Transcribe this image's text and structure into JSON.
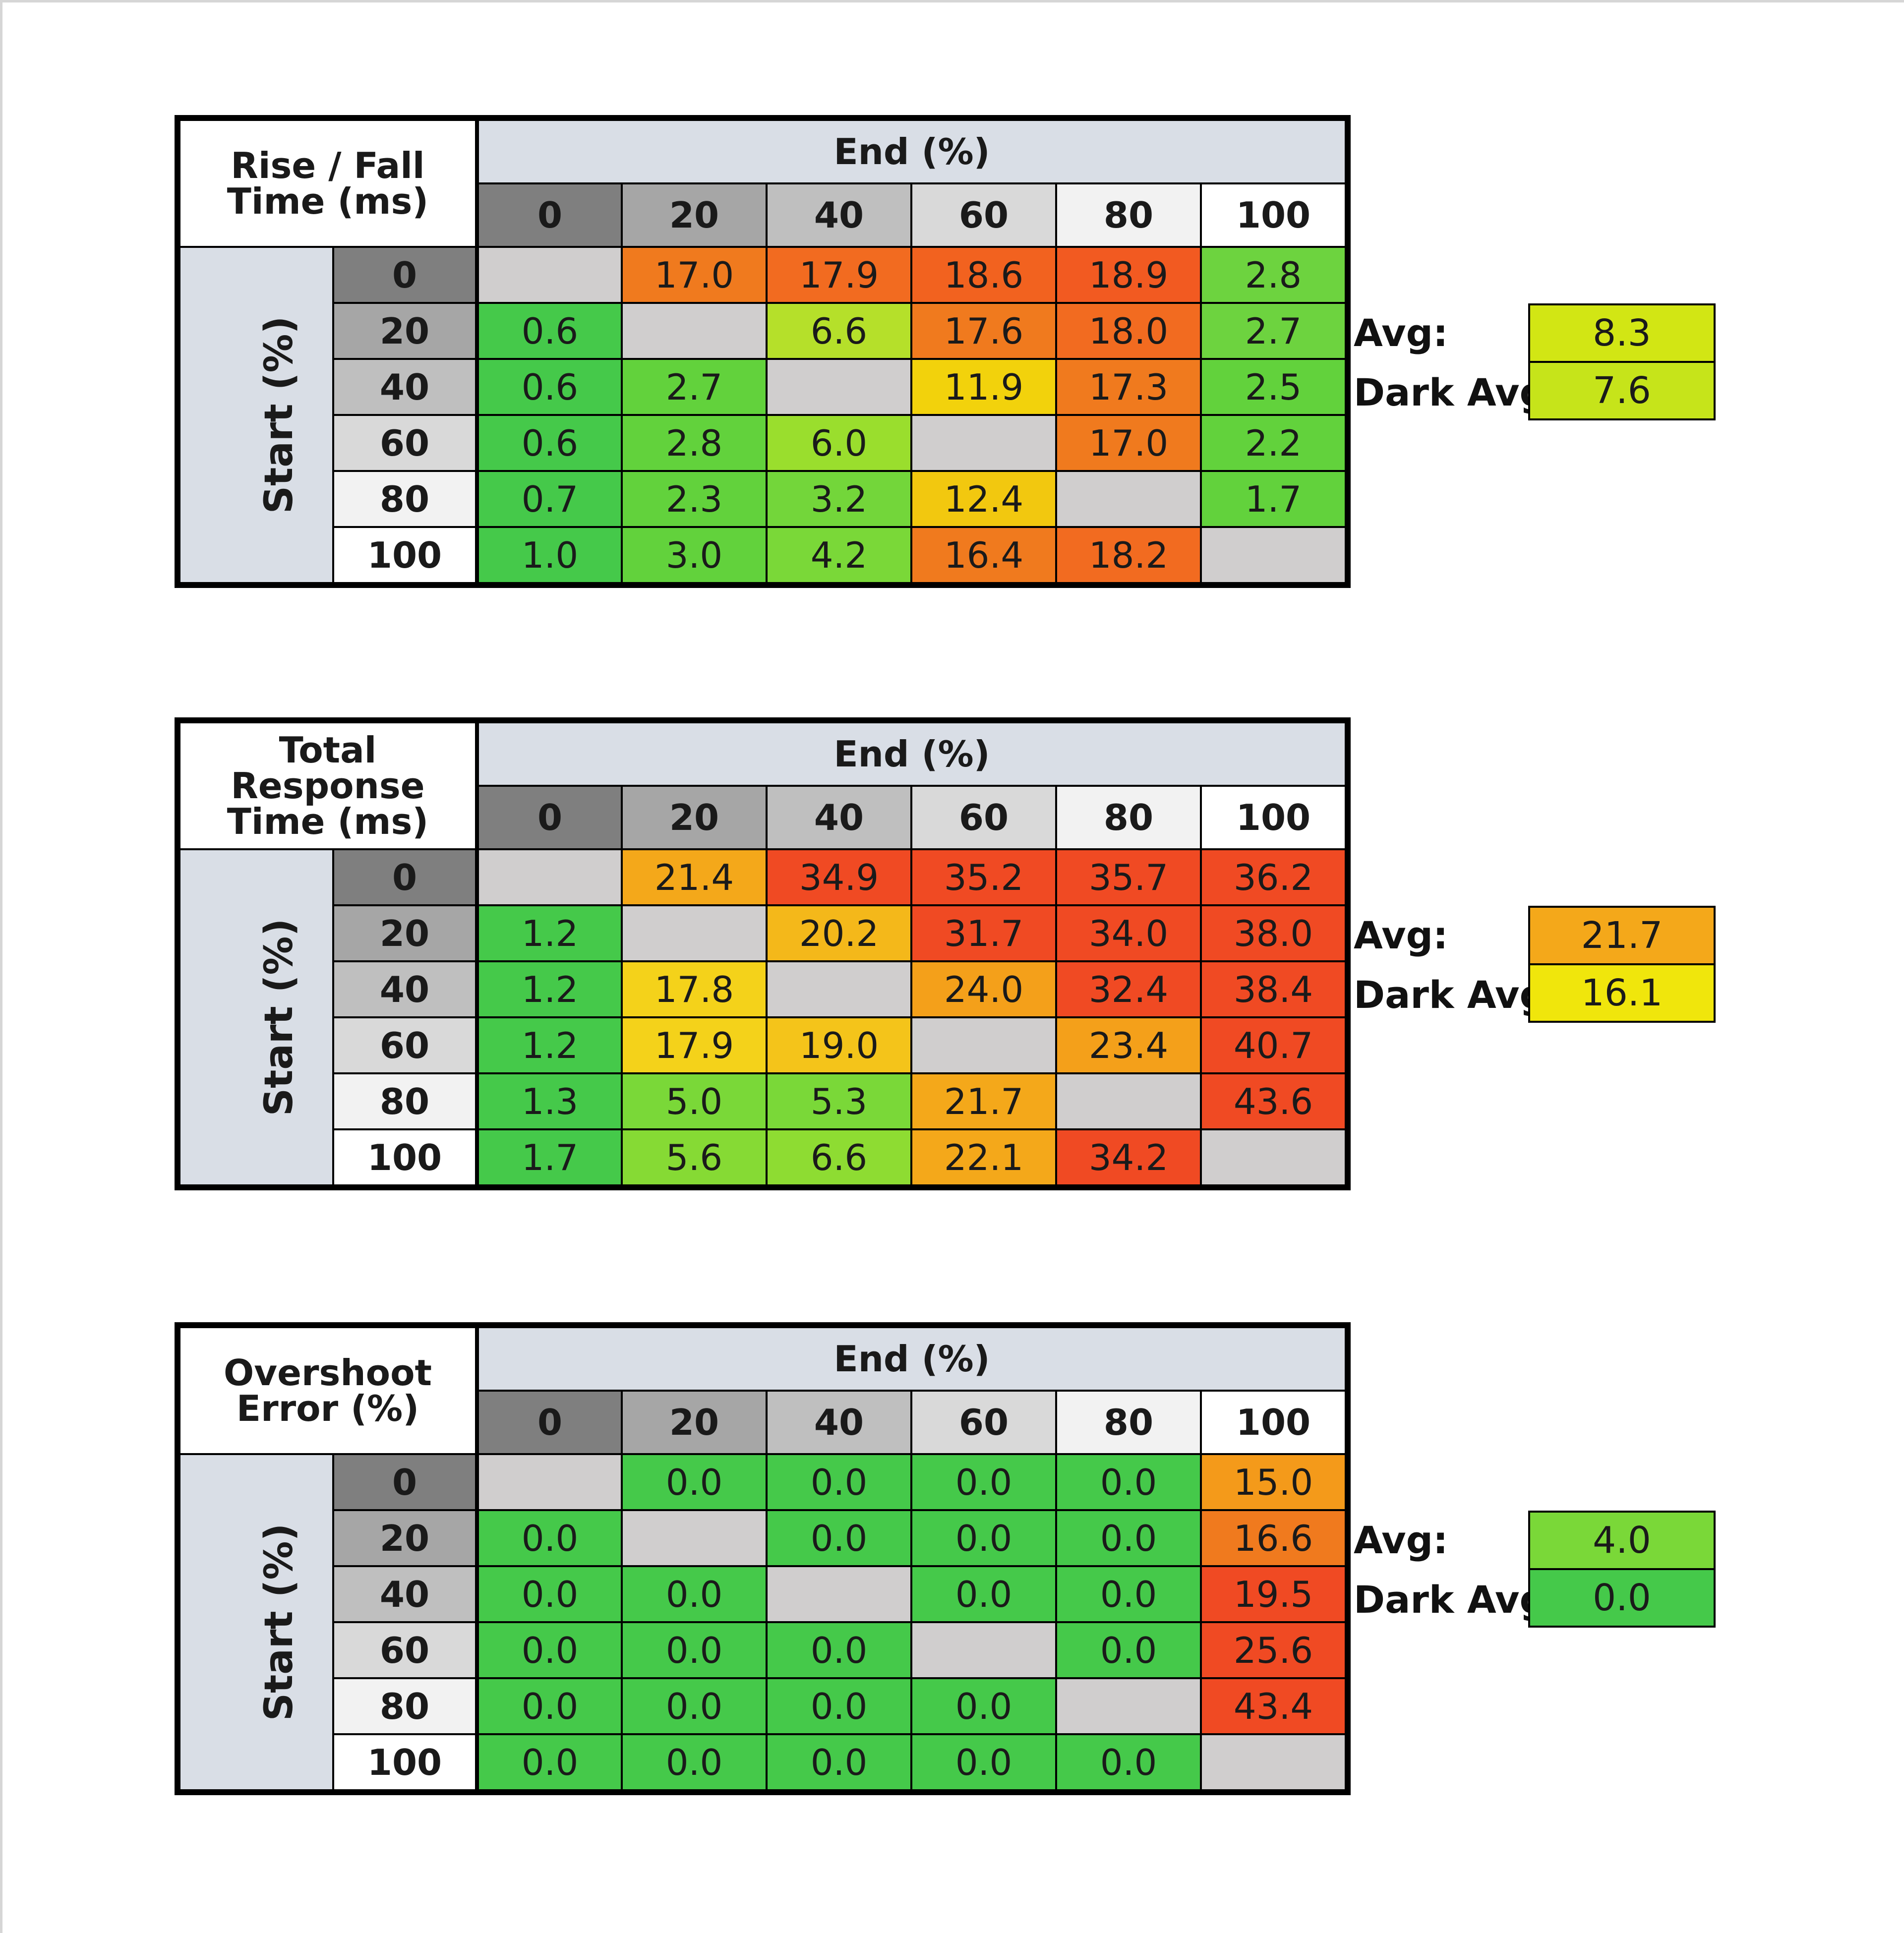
{
  "chart_data": [
    {
      "type": "table",
      "title": [
        "Rise / Fall",
        "Time (ms)"
      ],
      "col_header": "End (%)",
      "row_header": "Start (%)",
      "col_labels": [
        "0",
        "20",
        "40",
        "60",
        "80",
        "100"
      ],
      "row_labels": [
        "0",
        "20",
        "40",
        "60",
        "80",
        "100"
      ],
      "values": [
        [
          "",
          "17.0",
          "17.9",
          "18.6",
          "18.9",
          "2.8"
        ],
        [
          "0.6",
          "",
          "6.6",
          "17.6",
          "18.0",
          "2.7"
        ],
        [
          "0.6",
          "2.7",
          "",
          "11.9",
          "17.3",
          "2.5"
        ],
        [
          "0.6",
          "2.8",
          "6.0",
          "",
          "17.0",
          "2.2"
        ],
        [
          "0.7",
          "2.3",
          "3.2",
          "12.4",
          "",
          "1.7"
        ],
        [
          "1.0",
          "3.0",
          "4.2",
          "16.4",
          "18.2",
          ""
        ]
      ],
      "colors": [
        [
          "#d0cece",
          "#f07a1e",
          "#f26b20",
          "#f2621f",
          "#f25a21",
          "#6dd33f"
        ],
        [
          "#45c94a",
          "#d0cece",
          "#b5e02a",
          "#f07a1e",
          "#f26b20",
          "#6dd33f"
        ],
        [
          "#45c94a",
          "#62d23c",
          "#d0cece",
          "#f2d20c",
          "#f07a1e",
          "#62d23c"
        ],
        [
          "#45c94a",
          "#62d23c",
          "#9ade2d",
          "#d0cece",
          "#f07a1e",
          "#62d23c"
        ],
        [
          "#45c94a",
          "#62d23c",
          "#73d63a",
          "#f2c80f",
          "#d0cece",
          "#62d23c"
        ],
        [
          "#45c94a",
          "#62d23c",
          "#7ad838",
          "#f07a1e",
          "#f26b20",
          "#d0cece"
        ]
      ],
      "avg_label": "Avg:",
      "avg": "8.3",
      "avg_color": "#d2e614",
      "dark_avg_label": "Dark Avg:",
      "dark_avg": "7.6",
      "dark_avg_color": "#c6e41a"
    },
    {
      "type": "table",
      "title": [
        "Total Response",
        "Time (ms)"
      ],
      "col_header": "End (%)",
      "row_header": "Start (%)",
      "col_labels": [
        "0",
        "20",
        "40",
        "60",
        "80",
        "100"
      ],
      "row_labels": [
        "0",
        "20",
        "40",
        "60",
        "80",
        "100"
      ],
      "values": [
        [
          "",
          "21.4",
          "34.9",
          "35.2",
          "35.7",
          "36.2"
        ],
        [
          "1.2",
          "",
          "20.2",
          "31.7",
          "34.0",
          "38.0"
        ],
        [
          "1.2",
          "17.8",
          "",
          "24.0",
          "32.4",
          "38.4"
        ],
        [
          "1.2",
          "17.9",
          "19.0",
          "",
          "23.4",
          "40.7"
        ],
        [
          "1.3",
          "5.0",
          "5.3",
          "21.7",
          "",
          "43.6"
        ],
        [
          "1.7",
          "5.6",
          "6.6",
          "22.1",
          "34.2",
          ""
        ]
      ],
      "colors": [
        [
          "#d0cece",
          "#f4a81a",
          "#f04a23",
          "#f04a23",
          "#f04a23",
          "#f04a23"
        ],
        [
          "#45c94a",
          "#d0cece",
          "#f4b81a",
          "#f04a23",
          "#f04a23",
          "#f04a23"
        ],
        [
          "#45c94a",
          "#f4d21a",
          "#d0cece",
          "#f4a01a",
          "#f04a23",
          "#f04a23"
        ],
        [
          "#45c94a",
          "#f4d21a",
          "#f4c41a",
          "#d0cece",
          "#f4a01a",
          "#f04a23"
        ],
        [
          "#45c94a",
          "#7ad838",
          "#7ad838",
          "#f4a81a",
          "#d0cece",
          "#f04a23"
        ],
        [
          "#45c94a",
          "#86da34",
          "#8edc32",
          "#f4a81a",
          "#f04a23",
          "#d0cece"
        ]
      ],
      "avg_label": "Avg:",
      "avg": "21.7",
      "avg_color": "#f4a81a",
      "dark_avg_label": "Dark Avg:",
      "dark_avg": "16.1",
      "dark_avg_color": "#f0e60c"
    },
    {
      "type": "table",
      "title": [
        "Overshoot",
        "Error (%)"
      ],
      "col_header": "End (%)",
      "row_header": "Start (%)",
      "col_labels": [
        "0",
        "20",
        "40",
        "60",
        "80",
        "100"
      ],
      "row_labels": [
        "0",
        "20",
        "40",
        "60",
        "80",
        "100"
      ],
      "values": [
        [
          "",
          "0.0",
          "0.0",
          "0.0",
          "0.0",
          "15.0"
        ],
        [
          "0.0",
          "",
          "0.0",
          "0.0",
          "0.0",
          "16.6"
        ],
        [
          "0.0",
          "0.0",
          "",
          "0.0",
          "0.0",
          "19.5"
        ],
        [
          "0.0",
          "0.0",
          "0.0",
          "",
          "0.0",
          "25.6"
        ],
        [
          "0.0",
          "0.0",
          "0.0",
          "0.0",
          "",
          "43.4"
        ],
        [
          "0.0",
          "0.0",
          "0.0",
          "0.0",
          "0.0",
          ""
        ]
      ],
      "colors": [
        [
          "#d0cece",
          "#45c94a",
          "#45c94a",
          "#45c94a",
          "#45c94a",
          "#f49a1a"
        ],
        [
          "#45c94a",
          "#d0cece",
          "#45c94a",
          "#45c94a",
          "#45c94a",
          "#f07a1e"
        ],
        [
          "#45c94a",
          "#45c94a",
          "#d0cece",
          "#45c94a",
          "#45c94a",
          "#f04a23"
        ],
        [
          "#45c94a",
          "#45c94a",
          "#45c94a",
          "#d0cece",
          "#45c94a",
          "#f04a23"
        ],
        [
          "#45c94a",
          "#45c94a",
          "#45c94a",
          "#45c94a",
          "#d0cece",
          "#f04a23"
        ],
        [
          "#45c94a",
          "#45c94a",
          "#45c94a",
          "#45c94a",
          "#45c94a",
          "#d0cece"
        ]
      ],
      "avg_label": "Avg:",
      "avg": "4.0",
      "avg_color": "#7ad838",
      "dark_avg_label": "Dark Avg:",
      "dark_avg": "0.0",
      "dark_avg_color": "#45c94a"
    }
  ],
  "header_shades": [
    "#7f7f7f",
    "#a6a6a6",
    "#bfbfbf",
    "#d9d9d9",
    "#f2f2f2",
    "#ffffff"
  ]
}
